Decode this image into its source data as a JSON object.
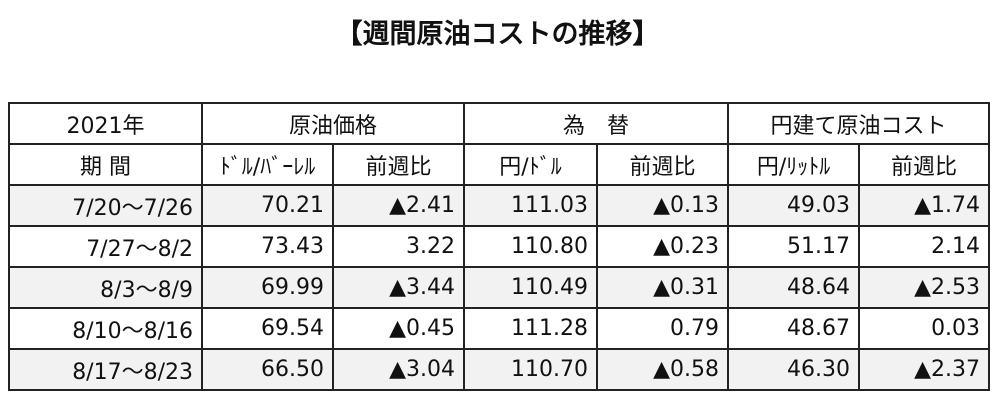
{
  "title": "【週間原油コストの推移】",
  "table": {
    "header_row1": [
      "2021年",
      "原油価格",
      "為　替",
      "円建て原油コスト"
    ],
    "header_row2": [
      "期 間",
      "ﾄﾞﾙ/ﾊﾞｰﾚﾙ",
      "前週比",
      "円/ﾄﾞﾙ",
      "前週比",
      "円/ﾘｯﾄﾙ",
      "前週比"
    ],
    "rows": [
      [
        "7/20～7/26",
        "70.21",
        "▲2.41",
        "111.03",
        "▲0.13",
        "49.03",
        "▲1.74"
      ],
      [
        "7/27～8/2",
        "73.43",
        "3.22",
        "110.80",
        "▲0.23",
        "51.17",
        "2.14"
      ],
      [
        "8/3～8/9",
        "69.99",
        "▲3.44",
        "110.49",
        "▲0.31",
        "48.64",
        "▲2.53"
      ],
      [
        "8/10～8/16",
        "69.54",
        "▲0.45",
        "111.28",
        "0.79",
        "48.67",
        "0.03"
      ],
      [
        "8/17～8/23",
        "66.50",
        "▲3.04",
        "110.70",
        "▲0.58",
        "46.30",
        "▲2.37"
      ]
    ]
  }
}
